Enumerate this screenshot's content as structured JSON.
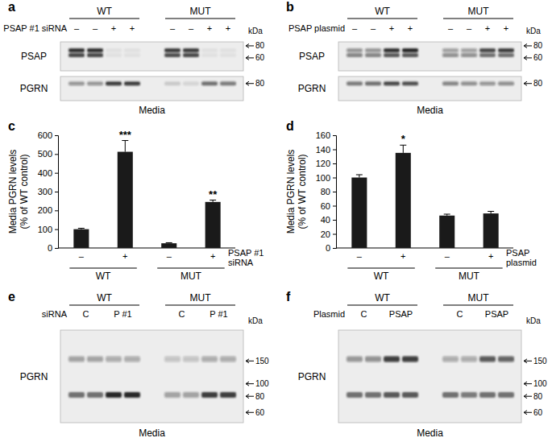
{
  "chart_data": [
    {
      "type": "bar",
      "title": "c",
      "y_label": "Media PGRN levels (% of WT control)",
      "x_label": "PSAP #1 siRNA",
      "categories": [
        "–",
        "+",
        "–",
        "+"
      ],
      "groups": [
        "WT",
        "MUT"
      ],
      "values": [
        100,
        512,
        25,
        245
      ],
      "errors": [
        5,
        60,
        3,
        10
      ],
      "annotations": [
        {
          "index": 1,
          "text": "***"
        },
        {
          "index": 3,
          "text": "**"
        }
      ],
      "color": "#1a1a1a",
      "ylim": [
        0,
        600
      ],
      "yticks": [
        0,
        100,
        200,
        300,
        400,
        500,
        600
      ],
      "grid": false
    },
    {
      "type": "bar",
      "title": "d",
      "y_label": "Media PGRN levels (% of WT control)",
      "x_label": "PSAP plasmid",
      "categories": [
        "–",
        "+",
        "–",
        "+"
      ],
      "groups": [
        "WT",
        "MUT"
      ],
      "values": [
        100,
        135,
        46,
        49
      ],
      "errors": [
        4,
        11,
        2,
        3
      ],
      "annotations": [
        {
          "index": 1,
          "text": "*"
        }
      ],
      "color": "#1a1a1a",
      "ylim": [
        0,
        160
      ],
      "yticks": [
        0,
        20,
        40,
        60,
        80,
        100,
        120,
        140,
        160
      ],
      "grid": false
    }
  ],
  "panels": [
    {
      "label": "a",
      "groups": [
        "WT",
        "MUT"
      ],
      "row": {
        "label": "PSAP #1 siRNA",
        "lanes": [
          "–",
          "–",
          "+",
          "+",
          "–",
          "–",
          "+",
          "+"
        ]
      },
      "unit": "kDa",
      "caption": "Media",
      "blots": [
        {
          "name": "PSAP",
          "ylim": [
            88,
            44
          ],
          "markers": [
            80,
            60
          ],
          "bands": [
            {
              "kda": 72,
              "intensity": [
                0.9,
                0.9,
                0.05,
                0.05,
                0.85,
                0.85,
                0.05,
                0.05
              ]
            },
            {
              "kda": 64,
              "intensity": [
                0.8,
                0.8,
                0.05,
                0.05,
                0.75,
                0.8,
                0.05,
                0.05
              ]
            }
          ]
        },
        {
          "name": "PGRN",
          "ylim": [
            90,
            60
          ],
          "markers": [
            80
          ],
          "bands": [
            {
              "kda": 80,
              "intensity": [
                0.4,
                0.4,
                0.85,
                0.85,
                0.15,
                0.1,
                0.6,
                0.55
              ]
            }
          ]
        }
      ]
    },
    {
      "label": "b",
      "groups": [
        "WT",
        "MUT"
      ],
      "row": {
        "label": "PSAP plasmid",
        "lanes": [
          "–",
          "–",
          "+",
          "+",
          "–",
          "–",
          "+",
          "+"
        ]
      },
      "unit": "kDa",
      "caption": "Media",
      "blots": [
        {
          "name": "PSAP",
          "ylim": [
            88,
            44
          ],
          "markers": [
            80,
            60
          ],
          "bands": [
            {
              "kda": 72,
              "intensity": [
                0.4,
                0.4,
                0.9,
                0.95,
                0.35,
                0.35,
                0.8,
                0.85
              ]
            },
            {
              "kda": 64,
              "intensity": [
                0.5,
                0.5,
                0.7,
                0.7,
                0.45,
                0.45,
                0.6,
                0.6
              ]
            }
          ]
        },
        {
          "name": "PGRN",
          "ylim": [
            90,
            60
          ],
          "markers": [
            80
          ],
          "bands": [
            {
              "kda": 80,
              "intensity": [
                0.55,
                0.6,
                0.8,
                0.75,
                0.5,
                0.45,
                0.4,
                0.45
              ]
            }
          ]
        }
      ]
    },
    {
      "label": "e",
      "groups": [
        "WT",
        "MUT"
      ],
      "row": {
        "label": "siRNA",
        "lanes": [
          "C",
          "P #1",
          "C",
          "P #1"
        ]
      },
      "unit": "kDa",
      "caption": "Media",
      "blots": [
        {
          "name": "PGRN",
          "ylim": [
            260,
            50
          ],
          "markers": [
            150,
            100,
            80,
            60
          ],
          "bands": [
            {
              "kda": 155,
              "intensity": [
                0.35,
                0.35,
                0.3,
                0.3,
                0.2,
                0.2,
                0.3,
                0.3
              ]
            },
            {
              "kda": 82,
              "intensity": [
                0.6,
                0.6,
                0.95,
                0.95,
                0.35,
                0.35,
                0.85,
                0.85
              ]
            }
          ]
        }
      ]
    },
    {
      "label": "f",
      "groups": [
        "WT",
        "MUT"
      ],
      "row": {
        "label": "Plasmid",
        "lanes": [
          "C",
          "PSAP",
          "C",
          "PSAP"
        ]
      },
      "unit": "kDa",
      "caption": "Media",
      "blots": [
        {
          "name": "PGRN",
          "ylim": [
            260,
            50
          ],
          "markers": [
            150,
            100,
            80,
            60
          ],
          "bands": [
            {
              "kda": 155,
              "intensity": [
                0.4,
                0.45,
                0.85,
                0.85,
                0.3,
                0.3,
                0.7,
                0.65
              ]
            },
            {
              "kda": 82,
              "intensity": [
                0.6,
                0.6,
                0.7,
                0.7,
                0.6,
                0.55,
                0.6,
                0.6
              ]
            }
          ]
        }
      ]
    }
  ]
}
